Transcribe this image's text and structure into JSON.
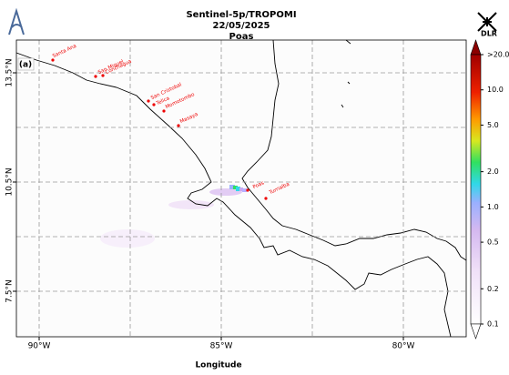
{
  "map": {
    "title": [
      "Sentinel-5p/TROPOMI",
      "22/05/2025",
      "Poas"
    ],
    "panel_label": "(a)",
    "xlabel": "Longitude",
    "logo_text": "DLR",
    "xlim": [
      -90.625,
      -78.275
    ],
    "ylim": [
      6.25,
      14.4
    ],
    "xticks": [
      {
        "value": -90,
        "label": "90°W"
      },
      {
        "value": -85,
        "label": "85°W"
      },
      {
        "value": -80,
        "label": "80°W"
      }
    ],
    "yticks": [
      {
        "value": 13.5,
        "label": "13.5°N"
      },
      {
        "value": 10.5,
        "label": "10.5°N"
      },
      {
        "value": 7.5,
        "label": "7.5°N"
      }
    ],
    "grid_x": [
      -90,
      -87.5,
      -85,
      -82.5,
      -80
    ],
    "grid_y": [
      13.5,
      12,
      10.5,
      9,
      7.5
    ],
    "colorbar": {
      "scale": "log",
      "lim": [
        0.1,
        20
      ],
      "ticks": [
        {
          "value": 20,
          "label": ">20.0"
        },
        {
          "value": 10,
          "label": "10.0"
        },
        {
          "value": 5,
          "label": "5.0"
        },
        {
          "value": 2,
          "label": "2.0"
        },
        {
          "value": 1,
          "label": "1.0"
        },
        {
          "value": 0.5,
          "label": "0.5"
        },
        {
          "value": 0.2,
          "label": "0.2"
        },
        {
          "value": 0.1,
          "label": "0.1"
        }
      ]
    },
    "volcanoes": [
      "Santa Ana",
      "San Miguel",
      "Conchagua",
      "San Cristobal",
      "Telica",
      "Momotombo",
      "Masaya",
      "Poas",
      "Turrialba"
    ]
  }
}
